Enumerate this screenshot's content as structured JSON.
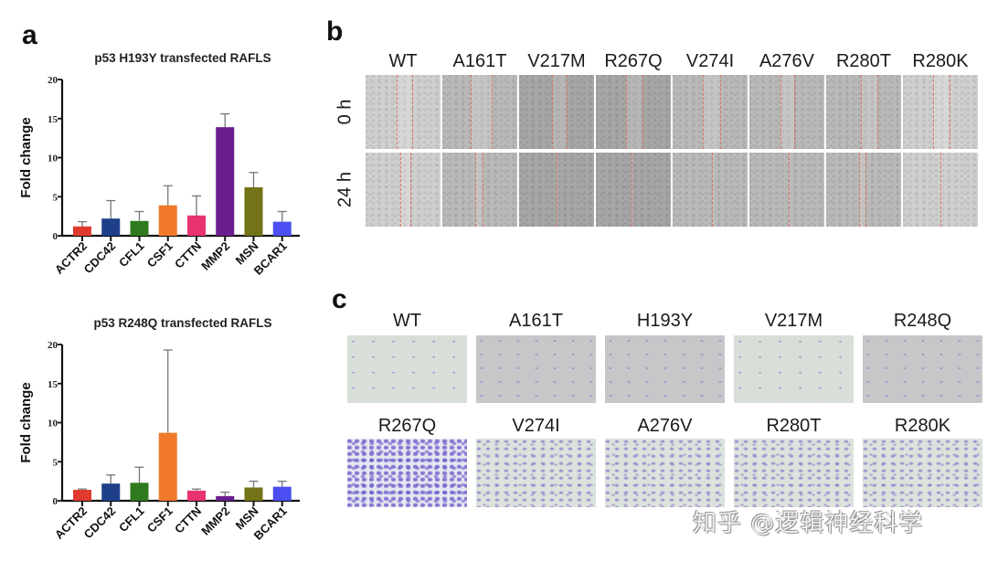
{
  "panels": {
    "a": {
      "letter": "a"
    },
    "b": {
      "letter": "b",
      "columns": [
        "WT",
        "A161T",
        "V217M",
        "R267Q",
        "V274I",
        "A276V",
        "R280T",
        "R280K"
      ],
      "rows": [
        "0 h",
        "24 h"
      ]
    },
    "c": {
      "letter": "c",
      "row1": [
        "WT",
        "A161T",
        "H193Y",
        "V217M",
        "R248Q"
      ],
      "row2": [
        "R267Q",
        "V274I",
        "A276V",
        "R280T",
        "R280K"
      ]
    }
  },
  "watermark": "知乎 @逻辑神经科学",
  "chart_data": [
    {
      "type": "bar",
      "title": "p53 H193Y transfected RAFLS",
      "xlabel": "",
      "ylabel": "Fold change",
      "ylim": [
        0,
        20
      ],
      "yticks": [
        0,
        5,
        10,
        15,
        20
      ],
      "grid": false,
      "legend": null,
      "categories": [
        "ACTR2",
        "CDC42",
        "CFL1",
        "CSF1",
        "CTTN",
        "MMP2",
        "MSN",
        "BCAR1"
      ],
      "values": [
        1.2,
        2.2,
        1.9,
        3.9,
        2.6,
        13.9,
        6.2,
        1.8
      ],
      "error": [
        0.6,
        2.3,
        1.2,
        2.5,
        2.5,
        1.7,
        1.9,
        1.3
      ],
      "colors": [
        "#e03a2f",
        "#1d3f8a",
        "#2f7a1e",
        "#f07a2a",
        "#e8336e",
        "#6a1f8e",
        "#737317",
        "#4b4ef0"
      ]
    },
    {
      "type": "bar",
      "title": "p53 R248Q transfected RAFLS",
      "xlabel": "",
      "ylabel": "Fold change",
      "ylim": [
        0,
        20
      ],
      "yticks": [
        0,
        5,
        10,
        15,
        20
      ],
      "grid": false,
      "legend": null,
      "categories": [
        "ACTR2",
        "CDC42",
        "CFL1",
        "CSF1",
        "CTTN",
        "MMP2",
        "MSN",
        "BCAR1"
      ],
      "values": [
        1.4,
        2.2,
        2.3,
        8.7,
        1.3,
        0.6,
        1.7,
        1.8
      ],
      "error": [
        0.1,
        1.1,
        2.0,
        10.6,
        0.2,
        0.5,
        0.8,
        0.7
      ],
      "colors": [
        "#e03a2f",
        "#1d3f8a",
        "#2f7a1e",
        "#f07a2a",
        "#e8336e",
        "#6a1f8e",
        "#737317",
        "#4b4ef0"
      ]
    }
  ]
}
